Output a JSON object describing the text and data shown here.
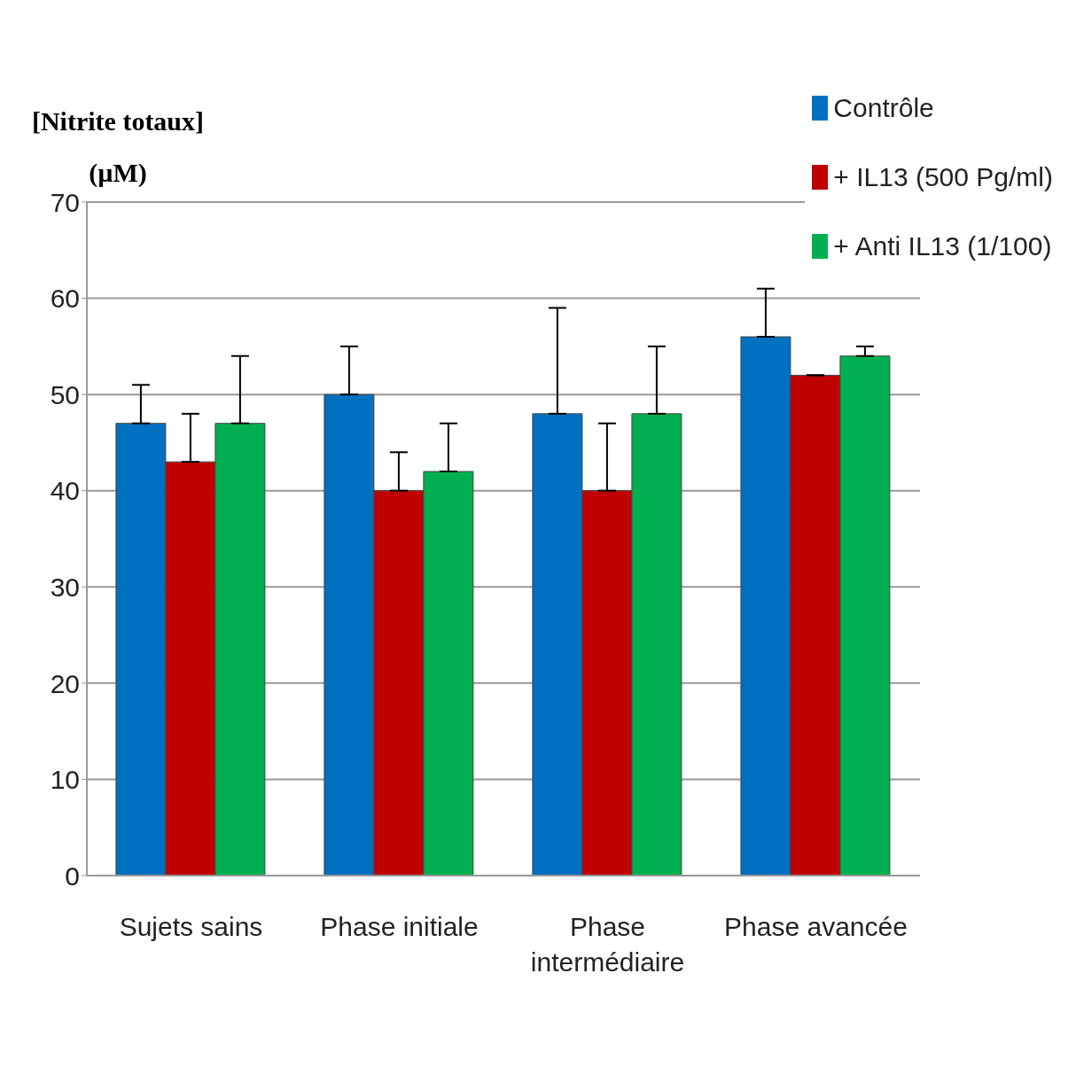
{
  "chart_data": {
    "type": "bar",
    "ylabel": "[Nitrite totaux] (µM)",
    "categories": [
      "Sujets sains",
      "Phase initiale",
      "Phase intermédiaire",
      "Phase avancée"
    ],
    "series": [
      {
        "name": "Contrôle",
        "color": "#0070c0",
        "values": [
          47,
          50,
          48,
          56
        ],
        "errors": [
          [
            47,
            51
          ],
          [
            50,
            55
          ],
          [
            48,
            59
          ],
          [
            56,
            61
          ]
        ]
      },
      {
        "name": "+ IL13 (500 Pg/ml)",
        "color": "#c00000",
        "values": [
          43,
          40,
          40,
          52
        ],
        "errors": [
          [
            43,
            48
          ],
          [
            40,
            44
          ],
          [
            40,
            47
          ],
          null
        ]
      },
      {
        "name": "+ Anti IL13 (1/100)",
        "color": "#00b050",
        "values": [
          47,
          42,
          48,
          54
        ],
        "errors": [
          [
            47,
            54
          ],
          [
            42,
            47
          ],
          [
            48,
            55
          ],
          [
            54,
            55
          ]
        ]
      }
    ],
    "ylim": [
      0,
      70
    ],
    "yticks": [
      0,
      10,
      20,
      30,
      40,
      50,
      60,
      70
    ],
    "grid": "y",
    "legend": "top right"
  }
}
